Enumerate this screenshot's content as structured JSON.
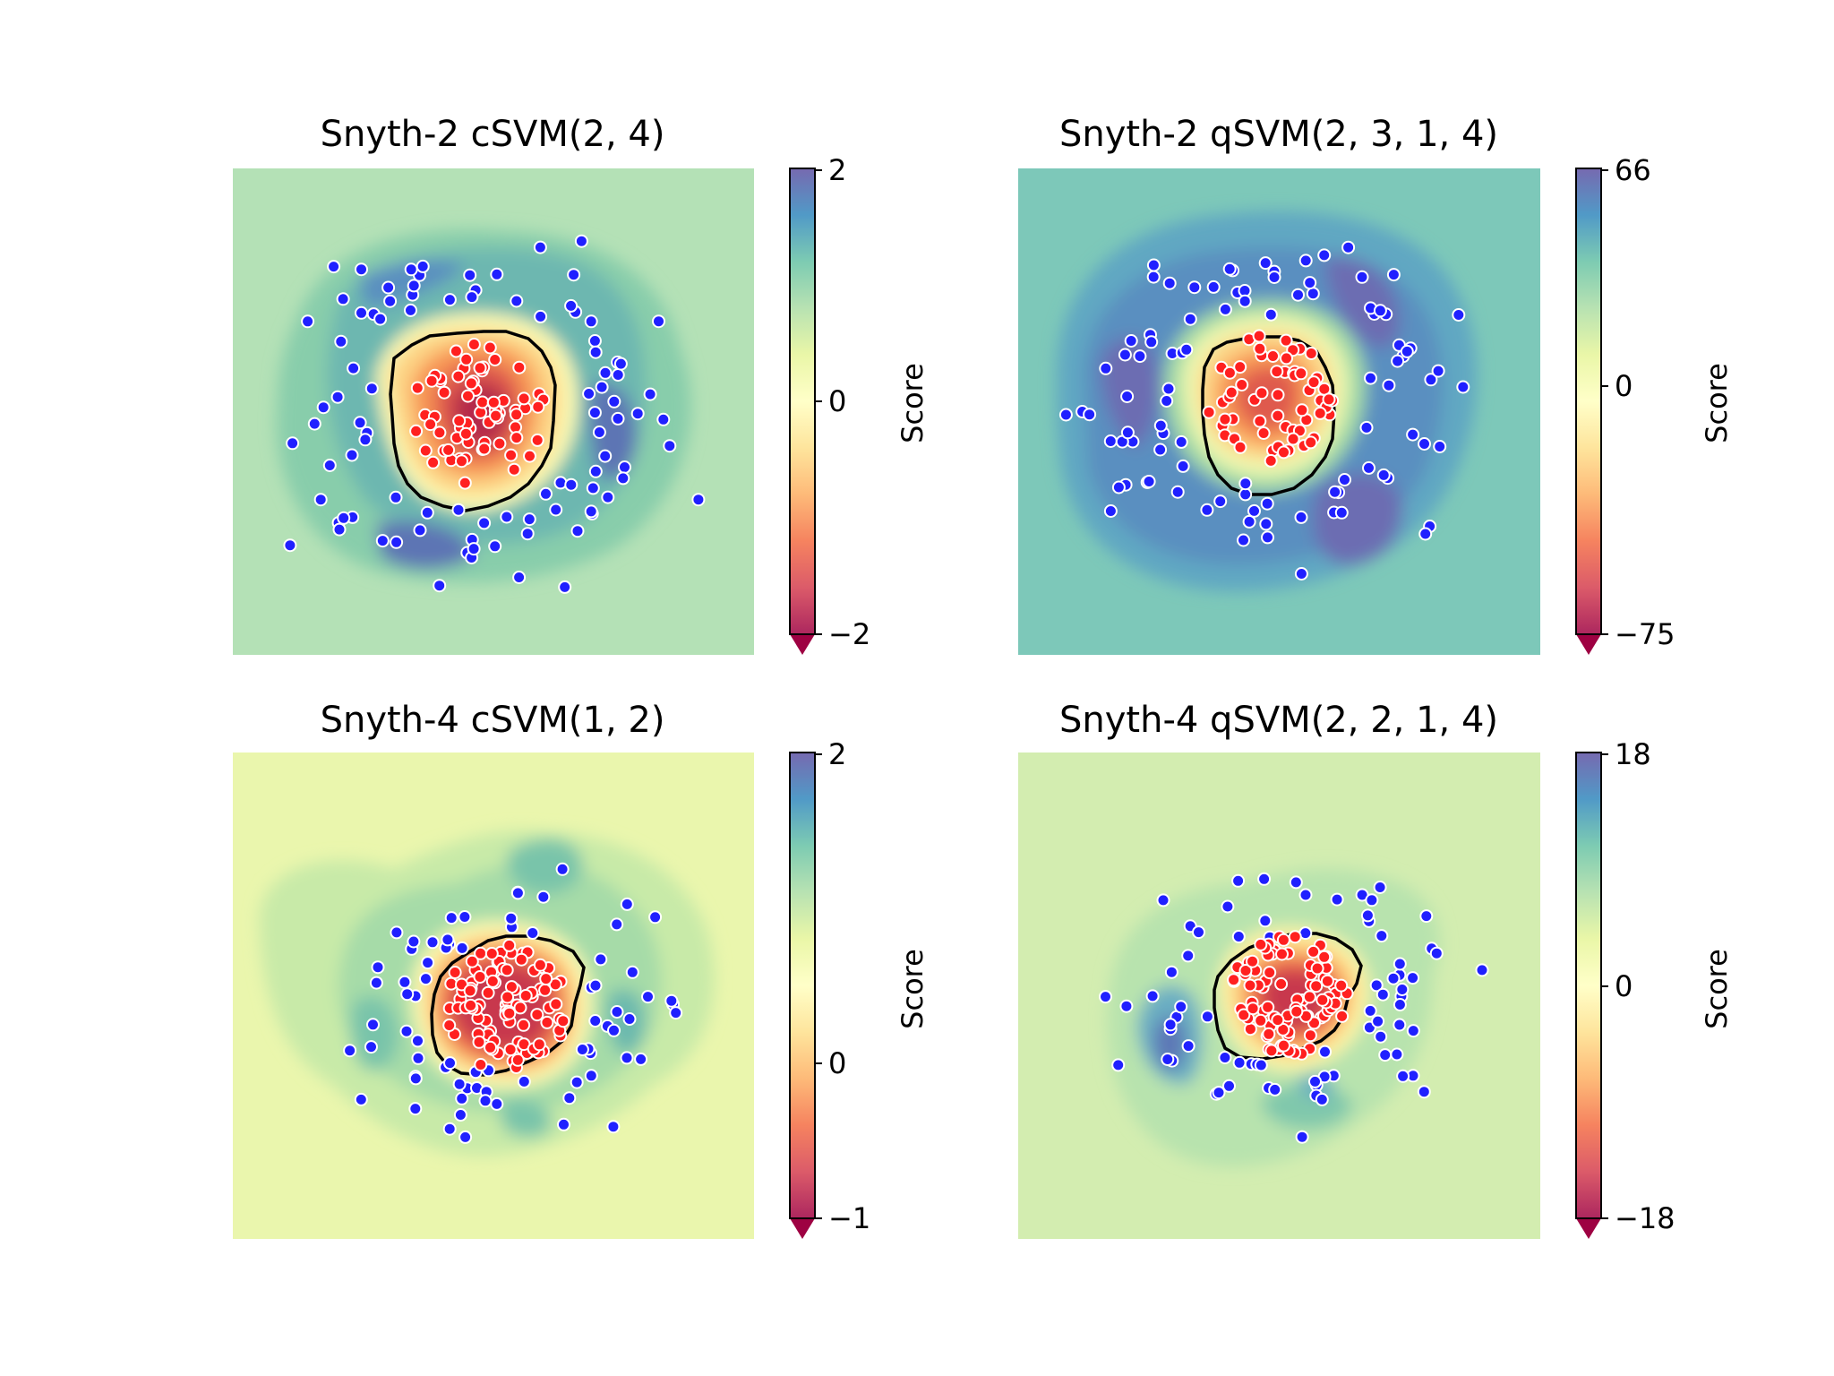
{
  "figure": {
    "colormap": "Spectral",
    "decision_boundary_color": "#000000",
    "positive_class_color": "#ff2020",
    "negative_class_color": "#2020ff",
    "point_edge_color": "#ffffff"
  },
  "chart_data": [
    {
      "type": "contour",
      "title": "Snyth-2 cSVM(2, 4)",
      "colorbar": {
        "label": "Score",
        "ticks": [
          "2",
          "0",
          "−2"
        ],
        "range": [
          -2,
          2
        ],
        "extend": "min"
      },
      "background_score": 0.75,
      "inner_class": {
        "color": "red",
        "count": 70
      },
      "outer_class": {
        "color": "blue",
        "count": 95
      },
      "axes_visible": false
    },
    {
      "type": "contour",
      "title": "Snyth-2 qSVM(2, 3, 1, 4)",
      "colorbar": {
        "label": "Score",
        "ticks": [
          "66",
          "0",
          "−75"
        ],
        "range": [
          -75,
          66
        ],
        "extend": "min"
      },
      "background_score": 0.62,
      "inner_class": {
        "color": "red",
        "count": 60
      },
      "outer_class": {
        "color": "blue",
        "count": 95
      },
      "axes_visible": false
    },
    {
      "type": "contour",
      "title": "Snyth-4 cSVM(1, 2)",
      "colorbar": {
        "label": "Score",
        "ticks": [
          "2",
          "0",
          "−1"
        ],
        "range": [
          -1,
          2
        ],
        "extend": "min"
      },
      "background_score": 0.45,
      "inner_class": {
        "color": "red",
        "count": 95
      },
      "outer_class": {
        "color": "blue",
        "count": 75
      },
      "axes_visible": false
    },
    {
      "type": "contour",
      "title": "Snyth-4 qSVM(2, 2, 1, 4)",
      "colorbar": {
        "label": "Score",
        "ticks": [
          "18",
          "0",
          "−18"
        ],
        "range": [
          -18,
          18
        ],
        "extend": "min"
      },
      "background_score": 0.55,
      "inner_class": {
        "color": "red",
        "count": 90
      },
      "outer_class": {
        "color": "blue",
        "count": 75
      },
      "axes_visible": false
    }
  ]
}
